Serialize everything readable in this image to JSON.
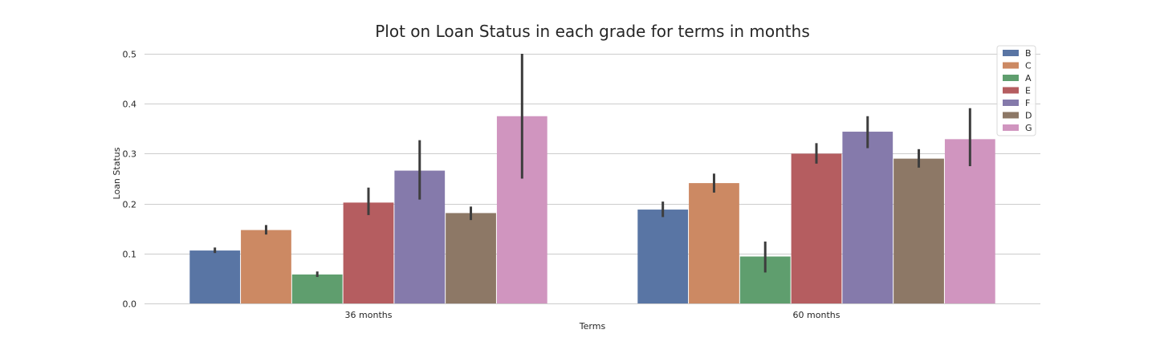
{
  "chart_data": {
    "type": "bar",
    "title": "Plot on Loan Status in each grade for terms in months",
    "xlabel": "Terms",
    "ylabel": "Loan Status",
    "categories": [
      "36 months",
      "60 months"
    ],
    "ylim": [
      0,
      0.5
    ],
    "yticks": [
      "0.0",
      "0.1",
      "0.2",
      "0.3",
      "0.4",
      "0.5"
    ],
    "grid": "horizontal",
    "legend_position": "top-right",
    "series": [
      {
        "name": "B",
        "color": "#5975a4",
        "values": [
          0.106,
          0.188
        ],
        "err_low": [
          0.101,
          0.173
        ],
        "err_high": [
          0.112,
          0.204
        ]
      },
      {
        "name": "C",
        "color": "#cc8963",
        "values": [
          0.147,
          0.241
        ],
        "err_low": [
          0.138,
          0.222
        ],
        "err_high": [
          0.157,
          0.26
        ]
      },
      {
        "name": "A",
        "color": "#5f9e6e",
        "values": [
          0.058,
          0.094
        ],
        "err_low": [
          0.053,
          0.062
        ],
        "err_high": [
          0.064,
          0.124
        ]
      },
      {
        "name": "E",
        "color": "#b55d60",
        "values": [
          0.202,
          0.3
        ],
        "err_low": [
          0.177,
          0.28
        ],
        "err_high": [
          0.232,
          0.321
        ]
      },
      {
        "name": "F",
        "color": "#857aab",
        "values": [
          0.266,
          0.344
        ],
        "err_low": [
          0.208,
          0.311
        ],
        "err_high": [
          0.327,
          0.375
        ]
      },
      {
        "name": "D",
        "color": "#8d7866",
        "values": [
          0.181,
          0.29
        ],
        "err_low": [
          0.167,
          0.272
        ],
        "err_high": [
          0.194,
          0.309
        ]
      },
      {
        "name": "G",
        "color": "#d095bf",
        "values": [
          0.375,
          0.329
        ],
        "err_low": [
          0.25,
          0.275
        ],
        "err_high": [
          0.5,
          0.391
        ]
      }
    ]
  }
}
